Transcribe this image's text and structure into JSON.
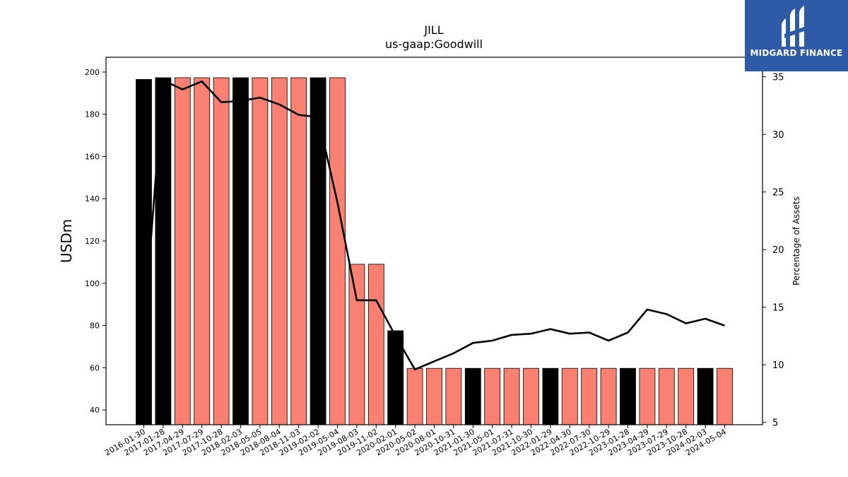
{
  "chart_data": {
    "type": "bar",
    "title": "JILL",
    "subtitle": "us-gaap:Goodwill",
    "ylabel": "USDm",
    "ylabel_right": "Percentage of Assets",
    "ylim": [
      33,
      207
    ],
    "ylim_right": [
      4.8,
      36.7
    ],
    "yticks": [
      40,
      60,
      80,
      100,
      120,
      140,
      160,
      180,
      200
    ],
    "yticks_right": [
      5,
      10,
      15,
      20,
      25,
      30,
      35
    ],
    "categories": [
      "2016-01-30",
      "2017-01-28",
      "2017-04-29",
      "2017-07-29",
      "2017-10-28",
      "2018-02-03",
      "2018-05-05",
      "2018-08-04",
      "2018-11-03",
      "2019-02-02",
      "2019-05-04",
      "2019-08-03",
      "2019-11-02",
      "2020-02-01",
      "2020-05-02",
      "2020-08-01",
      "2020-10-31",
      "2021-01-30",
      "2021-05-01",
      "2021-07-31",
      "2021-10-30",
      "2022-01-29",
      "2022-04-30",
      "2022-07-30",
      "2022-10-29",
      "2023-01-28",
      "2023-04-29",
      "2023-07-29",
      "2023-10-28",
      "2024-02-03",
      "2024-05-04"
    ],
    "series": [
      {
        "name": "",
        "kind": "bar",
        "values": [
          196.5,
          197.3,
          197.3,
          197.3,
          197.3,
          197.3,
          197.3,
          197.3,
          197.3,
          197.3,
          197.3,
          109,
          109,
          77.5,
          59.7,
          59.7,
          59.7,
          59.7,
          59.7,
          59.7,
          59.7,
          59.7,
          59.7,
          59.7,
          59.7,
          59.7,
          59.7,
          59.7,
          59.7,
          59.7,
          59.7
        ],
        "colors": [
          "#000000",
          "#000000",
          "#fa8072",
          "#fa8072",
          "#fa8072",
          "#000000",
          "#fa8072",
          "#fa8072",
          "#fa8072",
          "#000000",
          "#fa8072",
          "#fa8072",
          "#fa8072",
          "#000000",
          "#fa8072",
          "#fa8072",
          "#fa8072",
          "#000000",
          "#fa8072",
          "#fa8072",
          "#fa8072",
          "#000000",
          "#fa8072",
          "#fa8072",
          "#fa8072",
          "#000000",
          "#fa8072",
          "#fa8072",
          "#fa8072",
          "#000000",
          "#fa8072"
        ]
      },
      {
        "name": "",
        "kind": "line",
        "axis": "right",
        "color": "#000000",
        "values": [
          12.8,
          34.7,
          33.9,
          34.6,
          32.8,
          32.9,
          33.2,
          32.6,
          31.7,
          31.5,
          24.1,
          15.6,
          15.6,
          12.5,
          9.6,
          10.3,
          11.0,
          11.9,
          12.1,
          12.6,
          12.7,
          13.1,
          12.7,
          12.8,
          12.1,
          12.8,
          14.8,
          14.4,
          13.6,
          14.0,
          13.4
        ]
      }
    ],
    "grid": false,
    "legend": "none"
  },
  "logo": {
    "text": "MIDGARD FINANCE",
    "color": "#2f5aa8"
  }
}
